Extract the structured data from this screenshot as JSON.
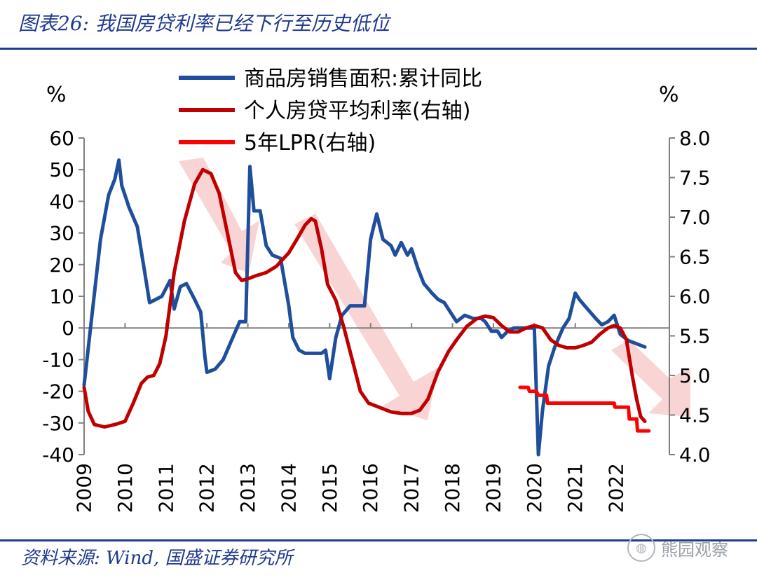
{
  "header": {
    "title": "图表26: 我国房贷利率已经下行至历史低位"
  },
  "footer": {
    "source": "资料来源: Wind, 国盛证券研究所",
    "watermark": "熊园观察"
  },
  "colors": {
    "blue": "#1f4e9c",
    "darkred": "#c00000",
    "red": "#ff0000",
    "arrow": "#f4b8b8",
    "rule": "#1f3a8f"
  },
  "chart_data": {
    "type": "line",
    "unit_left": "%",
    "unit_right": "%",
    "left_axis": {
      "ylim": [
        -40,
        60
      ],
      "ticks": [
        "60",
        "50",
        "40",
        "30",
        "20",
        "10",
        "0",
        "-10",
        "-20",
        "-30",
        "-40"
      ]
    },
    "right_axis": {
      "ylim": [
        4.0,
        8.0
      ],
      "ticks": [
        "8.0",
        "7.5",
        "7.0",
        "6.5",
        "6.0",
        "5.5",
        "5.0",
        "4.5",
        "4.0"
      ]
    },
    "x_ticks": [
      "2009",
      "2010",
      "2011",
      "2012",
      "2013",
      "2014",
      "2015",
      "2016",
      "2017",
      "2018",
      "2019",
      "2020",
      "2021",
      "2022"
    ],
    "xlim": [
      2009,
      2023.3
    ],
    "series": [
      {
        "name": "商品房销售面积:累计同比",
        "axis": "left",
        "points": [
          [
            2009.0,
            -18
          ],
          [
            2009.2,
            5
          ],
          [
            2009.4,
            28
          ],
          [
            2009.6,
            42
          ],
          [
            2009.75,
            47
          ],
          [
            2009.85,
            53
          ],
          [
            2009.92,
            45
          ],
          [
            2010.1,
            38
          ],
          [
            2010.3,
            32
          ],
          [
            2010.45,
            20
          ],
          [
            2010.6,
            8
          ],
          [
            2010.75,
            9
          ],
          [
            2010.9,
            10
          ],
          [
            2011.1,
            15
          ],
          [
            2011.2,
            6
          ],
          [
            2011.35,
            13
          ],
          [
            2011.5,
            14
          ],
          [
            2011.7,
            9
          ],
          [
            2011.85,
            5
          ],
          [
            2011.95,
            -9
          ],
          [
            2012.0,
            -14
          ],
          [
            2012.2,
            -13
          ],
          [
            2012.4,
            -10
          ],
          [
            2012.6,
            -4
          ],
          [
            2012.8,
            2
          ],
          [
            2012.95,
            2
          ],
          [
            2013.05,
            51
          ],
          [
            2013.15,
            37
          ],
          [
            2013.3,
            37
          ],
          [
            2013.45,
            26
          ],
          [
            2013.6,
            23
          ],
          [
            2013.8,
            22
          ],
          [
            2014.0,
            7
          ],
          [
            2014.1,
            -3
          ],
          [
            2014.25,
            -7
          ],
          [
            2014.4,
            -8
          ],
          [
            2014.6,
            -8
          ],
          [
            2014.8,
            -8
          ],
          [
            2014.9,
            -7
          ],
          [
            2015.0,
            -16
          ],
          [
            2015.15,
            -3
          ],
          [
            2015.3,
            4
          ],
          [
            2015.5,
            7
          ],
          [
            2015.7,
            7
          ],
          [
            2015.85,
            7
          ],
          [
            2016.0,
            28
          ],
          [
            2016.15,
            36
          ],
          [
            2016.3,
            28
          ],
          [
            2016.5,
            26
          ],
          [
            2016.6,
            23
          ],
          [
            2016.75,
            27
          ],
          [
            2016.9,
            23
          ],
          [
            2017.0,
            25
          ],
          [
            2017.15,
            19
          ],
          [
            2017.3,
            14
          ],
          [
            2017.5,
            11
          ],
          [
            2017.65,
            9
          ],
          [
            2017.8,
            8
          ],
          [
            2018.0,
            4
          ],
          [
            2018.1,
            2
          ],
          [
            2018.3,
            4
          ],
          [
            2018.5,
            3
          ],
          [
            2018.7,
            3
          ],
          [
            2018.8,
            2
          ],
          [
            2018.95,
            -1
          ],
          [
            2019.1,
            -1
          ],
          [
            2019.2,
            -3
          ],
          [
            2019.35,
            -1
          ],
          [
            2019.5,
            0
          ],
          [
            2019.7,
            0
          ],
          [
            2019.9,
            0
          ],
          [
            2020.0,
            0
          ],
          [
            2020.1,
            -40
          ],
          [
            2020.2,
            -26
          ],
          [
            2020.35,
            -12
          ],
          [
            2020.5,
            -6
          ],
          [
            2020.7,
            0
          ],
          [
            2020.85,
            3
          ],
          [
            2021.0,
            11
          ],
          [
            2021.1,
            9
          ],
          [
            2021.3,
            6
          ],
          [
            2021.5,
            3
          ],
          [
            2021.65,
            1
          ],
          [
            2021.8,
            2
          ],
          [
            2021.95,
            4
          ],
          [
            2022.1,
            -2
          ],
          [
            2022.3,
            -4
          ],
          [
            2022.5,
            -5
          ],
          [
            2022.7,
            -6
          ]
        ]
      },
      {
        "name": "个人房贷平均利率(右轴)",
        "axis": "right",
        "points": [
          [
            2009.0,
            4.85
          ],
          [
            2009.1,
            4.55
          ],
          [
            2009.25,
            4.38
          ],
          [
            2009.5,
            4.35
          ],
          [
            2009.75,
            4.38
          ],
          [
            2010.0,
            4.42
          ],
          [
            2010.2,
            4.65
          ],
          [
            2010.4,
            4.9
          ],
          [
            2010.55,
            4.98
          ],
          [
            2010.7,
            5.0
          ],
          [
            2010.85,
            5.15
          ],
          [
            2011.0,
            5.5
          ],
          [
            2011.2,
            6.3
          ],
          [
            2011.45,
            6.95
          ],
          [
            2011.7,
            7.42
          ],
          [
            2011.9,
            7.6
          ],
          [
            2012.1,
            7.55
          ],
          [
            2012.3,
            7.3
          ],
          [
            2012.5,
            6.8
          ],
          [
            2012.7,
            6.3
          ],
          [
            2012.85,
            6.2
          ],
          [
            2013.0,
            6.22
          ],
          [
            2013.2,
            6.26
          ],
          [
            2013.45,
            6.3
          ],
          [
            2013.7,
            6.38
          ],
          [
            2014.0,
            6.55
          ],
          [
            2014.2,
            6.72
          ],
          [
            2014.4,
            6.9
          ],
          [
            2014.55,
            6.98
          ],
          [
            2014.65,
            6.95
          ],
          [
            2014.8,
            6.6
          ],
          [
            2014.95,
            6.15
          ],
          [
            2015.15,
            5.95
          ],
          [
            2015.35,
            5.6
          ],
          [
            2015.55,
            5.2
          ],
          [
            2015.75,
            4.8
          ],
          [
            2015.95,
            4.65
          ],
          [
            2016.2,
            4.6
          ],
          [
            2016.5,
            4.54
          ],
          [
            2016.75,
            4.52
          ],
          [
            2017.0,
            4.52
          ],
          [
            2017.2,
            4.56
          ],
          [
            2017.4,
            4.7
          ],
          [
            2017.65,
            5.05
          ],
          [
            2017.9,
            5.3
          ],
          [
            2018.1,
            5.45
          ],
          [
            2018.35,
            5.62
          ],
          [
            2018.6,
            5.72
          ],
          [
            2018.8,
            5.75
          ],
          [
            2019.0,
            5.73
          ],
          [
            2019.2,
            5.63
          ],
          [
            2019.4,
            5.55
          ],
          [
            2019.6,
            5.55
          ],
          [
            2019.8,
            5.6
          ],
          [
            2020.0,
            5.63
          ],
          [
            2020.2,
            5.6
          ],
          [
            2020.4,
            5.45
          ],
          [
            2020.6,
            5.38
          ],
          [
            2020.8,
            5.35
          ],
          [
            2021.0,
            5.35
          ],
          [
            2021.2,
            5.38
          ],
          [
            2021.4,
            5.42
          ],
          [
            2021.6,
            5.52
          ],
          [
            2021.8,
            5.6
          ],
          [
            2021.95,
            5.63
          ],
          [
            2022.1,
            5.6
          ],
          [
            2022.25,
            5.45
          ],
          [
            2022.4,
            4.98
          ],
          [
            2022.5,
            4.7
          ],
          [
            2022.6,
            4.48
          ],
          [
            2022.7,
            4.42
          ]
        ]
      },
      {
        "name": "5年LPR(右轴)",
        "axis": "right",
        "points": [
          [
            2019.65,
            4.85
          ],
          [
            2019.85,
            4.85
          ],
          [
            2019.88,
            4.8
          ],
          [
            2020.05,
            4.8
          ],
          [
            2020.1,
            4.75
          ],
          [
            2020.3,
            4.75
          ],
          [
            2020.32,
            4.65
          ],
          [
            2021.95,
            4.65
          ],
          [
            2021.97,
            4.6
          ],
          [
            2022.3,
            4.6
          ],
          [
            2022.32,
            4.45
          ],
          [
            2022.5,
            4.45
          ],
          [
            2022.52,
            4.3
          ],
          [
            2022.8,
            4.3
          ]
        ]
      }
    ]
  }
}
